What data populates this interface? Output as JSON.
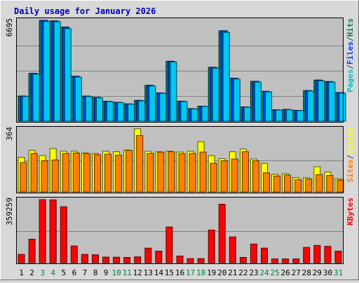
{
  "chart_data": {
    "type": "bar",
    "title": "Daily usage for January 2026",
    "categories": [
      "1",
      "2",
      "3",
      "4",
      "5",
      "6",
      "7",
      "8",
      "9",
      "10",
      "11",
      "12",
      "13",
      "14",
      "15",
      "16",
      "17",
      "18",
      "19",
      "20",
      "21",
      "22",
      "23",
      "24",
      "25",
      "26",
      "27",
      "28",
      "29",
      "30",
      "31"
    ],
    "weekend_days": [
      "3",
      "4",
      "10",
      "11",
      "17",
      "18",
      "24",
      "25",
      "31"
    ],
    "panels": [
      {
        "id": "hits",
        "ymax_label": "6695",
        "ymax": 6695,
        "legend": [
          {
            "text": "Pages",
            "color": "#00c0d0"
          },
          {
            "text": "/",
            "color": "#404040"
          },
          {
            "text": "Files",
            "color": "#0040ff"
          },
          {
            "text": "/",
            "color": "#404040"
          },
          {
            "text": "Hits",
            "color": "#008060"
          }
        ],
        "series": [
          {
            "name": "Hits",
            "color": "#008060",
            "values": [
              1670,
              3180,
              6690,
              6660,
              6250,
              2980,
              1670,
              1580,
              1320,
              1250,
              1150,
              1380,
              2380,
              1880,
              3980,
              1330,
              830,
              1000,
              3580,
              6000,
              2850,
              950,
              2650,
              1980,
              760,
              780,
              720,
              2030,
              2730,
              2630,
              1900
            ]
          },
          {
            "name": "Files",
            "color": "#0040ff",
            "values": [
              1670,
              3180,
              6690,
              6660,
              6250,
              2980,
              1670,
              1580,
              1320,
              1250,
              1150,
              1380,
              2380,
              1880,
              3980,
              1330,
              830,
              1000,
              3580,
              6000,
              2850,
              950,
              2650,
              1980,
              760,
              780,
              720,
              2030,
              2730,
              2630,
              1900
            ]
          },
          {
            "name": "Pages",
            "color": "#00c8f0",
            "values": [
              1640,
              3120,
              6620,
              6600,
              6150,
              2930,
              1640,
              1550,
              1300,
              1230,
              1130,
              1350,
              2340,
              1850,
              3930,
              1300,
              810,
              980,
              3520,
              5900,
              2800,
              930,
              2600,
              1950,
              740,
              760,
              700,
              2000,
              2680,
              2590,
              1870
            ]
          }
        ]
      },
      {
        "id": "visits",
        "ymax_label": "364",
        "ymax": 364,
        "legend": [
          {
            "text": "Sites",
            "color": "#ff8000"
          },
          {
            "text": "/",
            "color": "#404040"
          },
          {
            "text": "Visits",
            "color": "#ffff00"
          }
        ],
        "series": [
          {
            "name": "Visits",
            "color": "#ffff00",
            "values": [
              200,
              240,
              210,
              250,
              235,
              235,
              225,
              222,
              235,
              232,
              242,
              365,
              235,
              232,
              235,
              230,
              235,
              290,
              210,
              192,
              232,
              248,
              190,
              165,
              102,
              105,
              82,
              82,
              145,
              115,
              75
            ]
          },
          {
            "name": "Sites",
            "color": "#ff8000",
            "values": [
              170,
              222,
              180,
              185,
              222,
              225,
              222,
              215,
              218,
              212,
              240,
              325,
              222,
              230,
              232,
              220,
              222,
              230,
              165,
              180,
              190,
              232,
              180,
              110,
              92,
              97,
              70,
              75,
              100,
              95,
              68
            ]
          }
        ]
      },
      {
        "id": "kbytes",
        "ymax_label": "359259",
        "ymax": 359259,
        "legend": [
          {
            "text": "KBytes",
            "color": "#ff0000"
          }
        ],
        "series": [
          {
            "name": "KBytes",
            "color": "#ff0000",
            "values": [
              47000,
              134000,
              359259,
              358000,
              319000,
              95000,
              47000,
              45000,
              32000,
              31000,
              30000,
              33000,
              83000,
              66000,
              203000,
              38000,
              23000,
              23000,
              186000,
              333000,
              147000,
              30000,
              106000,
              83000,
              21000,
              21000,
              21000,
              87000,
              98000,
              93000,
              66000
            ]
          }
        ]
      }
    ]
  }
}
